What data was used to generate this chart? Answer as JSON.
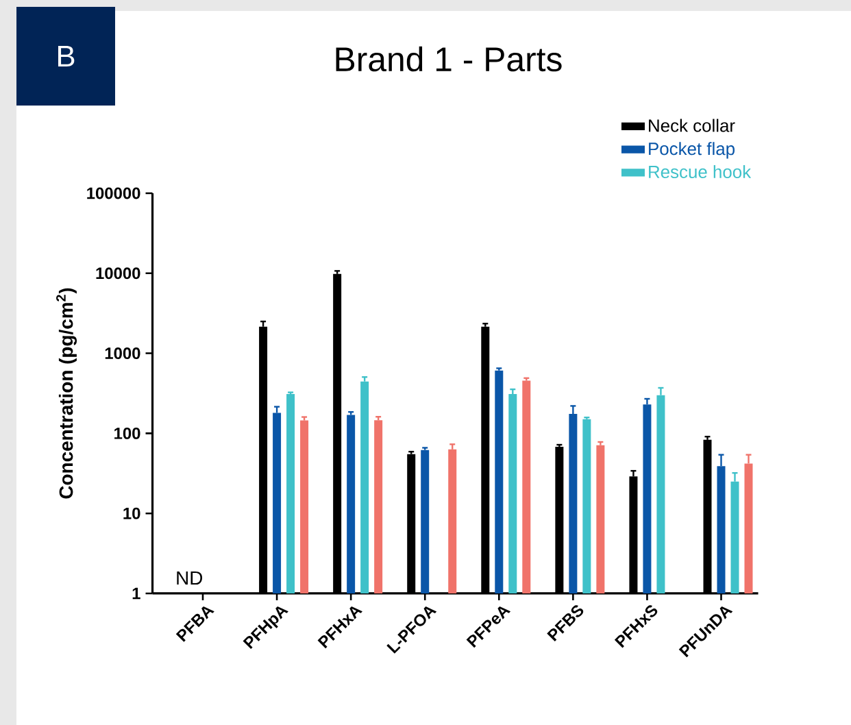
{
  "chart_data": {
    "type": "bar",
    "title": "Brand 1 - Parts",
    "ylabel": "Concentration (pg/cm$^{2}$)",
    "annotations": [
      "B",
      "ND"
    ],
    "categories": [
      "PFBA",
      "PFHpA",
      "PFHxA",
      "L-PFOA",
      "PFPeA",
      "PFBS",
      "PFHxS",
      "PFUnDA"
    ],
    "series": [
      {
        "name": "Neck collar",
        "color": "#000000",
        "values": [
          null,
          2150,
          9800,
          55,
          2150,
          68,
          29,
          83
        ],
        "errors": [
          null,
          350,
          900,
          4,
          200,
          4,
          5,
          8
        ]
      },
      {
        "name": "Pocket flap",
        "color": "#0a56a8",
        "values": [
          null,
          180,
          170,
          62,
          610,
          175,
          230,
          39
        ],
        "errors": [
          null,
          35,
          15,
          4,
          40,
          45,
          40,
          15
        ]
      },
      {
        "name": "Rescue hook",
        "color": "#3fc1c9",
        "values": [
          null,
          310,
          445,
          null,
          310,
          150,
          300,
          25
        ],
        "errors": [
          null,
          15,
          60,
          null,
          45,
          8,
          70,
          7
        ]
      },
      {
        "color": "#f0736a",
        "values": [
          null,
          145,
          146,
          63,
          455,
          71,
          null,
          42
        ],
        "errors": [
          null,
          15,
          15,
          10,
          35,
          7,
          null,
          12
        ]
      }
    ],
    "log": true,
    "ylim": [
      1,
      100000
    ],
    "yticks": [
      1,
      10,
      100,
      1000,
      10000,
      100000
    ],
    "grid": false,
    "legend": "top right"
  }
}
